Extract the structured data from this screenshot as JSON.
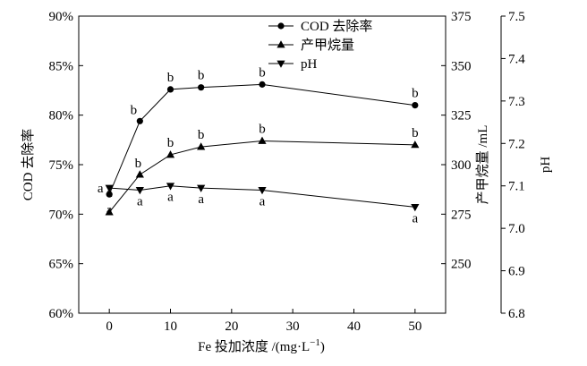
{
  "chart_data": {
    "type": "line",
    "x": [
      0,
      5,
      10,
      15,
      25,
      50
    ],
    "xlim": [
      -5,
      55
    ],
    "xticks": [
      "0",
      "10",
      "20",
      "30",
      "40",
      "50"
    ],
    "xlabel_main": "Fe 投加浓度 /(mg·L",
    "xlabel_sup": "−1",
    "xlabel_close": ")",
    "ylabel_left": "COD 去除率",
    "ylabel_mid": "产甲烷量 /mL",
    "ylabel_right": "pH",
    "ylim_left": [
      60,
      90
    ],
    "yticks_left": [
      "60%",
      "65%",
      "70%",
      "75%",
      "80%",
      "85%",
      "90%"
    ],
    "ylim_mid": [
      225,
      375
    ],
    "yticks_mid": [
      "250",
      "275",
      "300",
      "325",
      "350",
      "375"
    ],
    "ylim_right": [
      6.8,
      7.5
    ],
    "yticks_right": [
      "6.8",
      "6.9",
      "7.0",
      "7.1",
      "7.2",
      "7.3",
      "7.4",
      "7.5"
    ],
    "series": [
      {
        "name": "COD 去除率",
        "axis": "left",
        "marker": "circle",
        "values": [
          72.0,
          79.4,
          82.6,
          82.8,
          83.1,
          81.0
        ],
        "labels": [
          "a",
          "b",
          "b",
          "b",
          "b",
          "b"
        ]
      },
      {
        "name": "产甲烷量",
        "axis": "mid",
        "marker": "triangle-up",
        "values": [
          276,
          295,
          305,
          309,
          312,
          310
        ],
        "labels": [
          "a",
          "b",
          "b",
          "b",
          "b",
          "b"
        ]
      },
      {
        "name": "pH",
        "axis": "right",
        "marker": "triangle-down",
        "values": [
          7.095,
          7.09,
          7.1,
          7.095,
          7.09,
          7.05
        ],
        "labels": [
          "a",
          "a",
          "a",
          "a",
          "a",
          "a"
        ]
      }
    ],
    "legend_position": "top-right"
  }
}
